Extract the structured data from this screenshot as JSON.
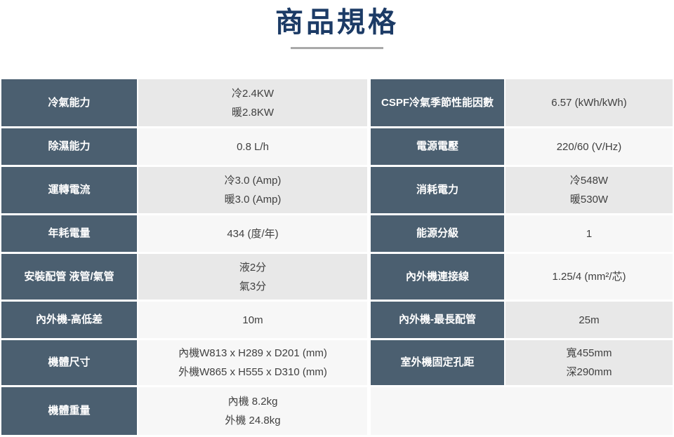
{
  "page": {
    "title": "商品規格"
  },
  "colors": {
    "title_text": "#1c3b66",
    "divider": "#a9a9a9",
    "label_bg": "#4b5f70",
    "label_text": "#ffffff",
    "value_bg_gray": "#e8e8e8",
    "value_bg_light": "#f7f7f7",
    "value_text": "#404040",
    "page_bg": "#ffffff"
  },
  "spec_table": {
    "rows": [
      {
        "left": {
          "label": "冷氣能力",
          "value": "冷2.4KW\n暖2.8KW"
        },
        "right": {
          "label": "CSPF冷氣季節性能因數",
          "value": "6.57 (kWh/kWh)"
        }
      },
      {
        "left": {
          "label": "除濕能力",
          "value": "0.8 L/h"
        },
        "right": {
          "label": "電源電壓",
          "value": "220/60 (V/Hz)"
        }
      },
      {
        "left": {
          "label": "運轉電流",
          "value": "冷3.0 (Amp)\n暖3.0 (Amp)"
        },
        "right": {
          "label": "消耗電力",
          "value": "冷548W\n暖530W"
        }
      },
      {
        "left": {
          "label": "年耗電量",
          "value": "434 (度/年)"
        },
        "right": {
          "label": "能源分級",
          "value": "1"
        }
      },
      {
        "left": {
          "label": "安裝配管 液管/氣管",
          "value": "液2分\n氣3分"
        },
        "right": {
          "label": "內外機連接線",
          "value": "1.25/4 (mm²/芯)"
        }
      },
      {
        "left": {
          "label": "內外機-高低差",
          "value": "10m"
        },
        "right": {
          "label": "內外機-最長配管",
          "value": "25m"
        }
      },
      {
        "left": {
          "label": "機體尺寸",
          "value": "內機W813 x H289 x D201 (mm)\n外機W865 x H555 x D310 (mm)"
        },
        "right": {
          "label": "室外機固定孔距",
          "value": "寬455mm\n深290mm"
        }
      },
      {
        "left": {
          "label": "機體重量",
          "value": "內機 8.2kg\n外機 24.8kg"
        },
        "right": {
          "label": "",
          "value": ""
        }
      }
    ]
  }
}
